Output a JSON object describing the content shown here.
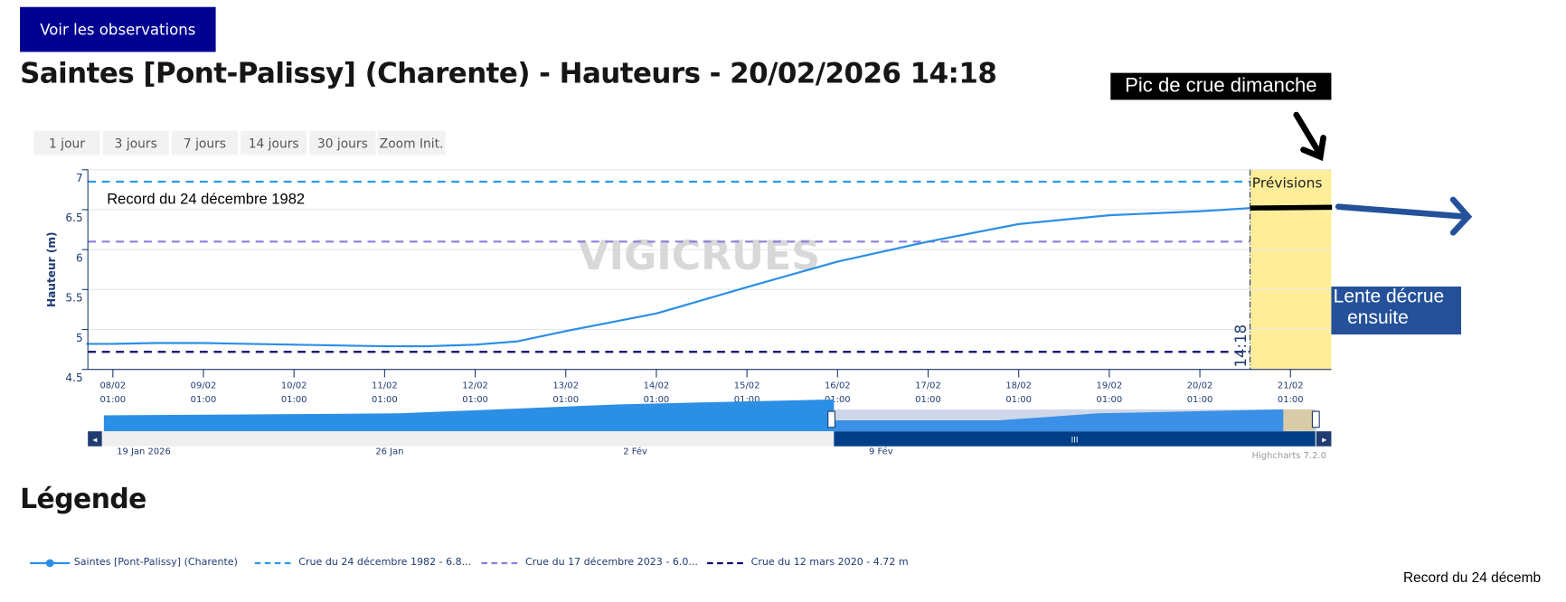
{
  "header": {
    "observations_button": "Voir les observations",
    "title": "Saintes [Pont-Palissy] (Charente) - Hauteurs - 20/02/2026 14:18"
  },
  "range_buttons": [
    "1 jour",
    "3 jours",
    "7 jours",
    "14 jours",
    "30 jours",
    "Zoom Init."
  ],
  "annotations": {
    "peak": "Pic de crue dimanche",
    "decline_line1": "Lente décrue",
    "decline_line2": "ensuite",
    "record_label": "Record du 24 décembre 1982",
    "forecast_label": "Prévisions",
    "now_label": "14:18",
    "stray_text": "Record du 24 décemb"
  },
  "watermark": "VIGICRUES",
  "credits": "Highcharts 7.2.0",
  "legend": {
    "title": "Légende",
    "items": [
      {
        "label": "Saintes [Pont-Palissy] (Charente)",
        "color": "#2b8fe6"
      },
      {
        "label": "Crue du 24 décembre 1982 - 6.8...",
        "color": "#2b9be6"
      },
      {
        "label": "Crue du 17 décembre 2023 - 6.0...",
        "color": "#8a7fe0"
      },
      {
        "label": "Crue du 12 mars 2020 - 4.72 m",
        "color": "#0b0b6e"
      }
    ]
  },
  "navigator": {
    "labels": [
      "19 Jan 2026",
      "26 Jan",
      "2 Fév",
      "9 Fév"
    ]
  },
  "chart_data": {
    "type": "line",
    "ylabel": "Hauteur (m)",
    "ylim": [
      4.5,
      7
    ],
    "yticks": [
      "4.5",
      "5",
      "5.5",
      "6",
      "6.5",
      "7"
    ],
    "xticks": [
      [
        "08/02",
        "01:00"
      ],
      [
        "09/02",
        "01:00"
      ],
      [
        "10/02",
        "01:00"
      ],
      [
        "11/02",
        "01:00"
      ],
      [
        "12/02",
        "01:00"
      ],
      [
        "13/02",
        "01:00"
      ],
      [
        "14/02",
        "01:00"
      ],
      [
        "15/02",
        "01:00"
      ],
      [
        "16/02",
        "01:00"
      ],
      [
        "17/02",
        "01:00"
      ],
      [
        "18/02",
        "01:00"
      ],
      [
        "19/02",
        "01:00"
      ],
      [
        "20/02",
        "01:00"
      ],
      [
        "21/02",
        "01:00"
      ]
    ],
    "grid": true,
    "series": [
      {
        "name": "Saintes [Pont-Palissy] (Charente)",
        "color": "#2b8fe6",
        "x": [
          "07/02 18:00",
          "08/02 01:00",
          "08/02 12:00",
          "09/02 01:00",
          "10/02 01:00",
          "11/02 01:00",
          "11/02 12:00",
          "12/02 01:00",
          "12/02 12:00",
          "13/02 01:00",
          "14/02 01:00",
          "15/02 01:00",
          "16/02 01:00",
          "17/02 01:00",
          "18/02 01:00",
          "19/02 01:00",
          "20/02 01:00",
          "20/02 14:18"
        ],
        "y": [
          4.82,
          4.82,
          4.83,
          4.83,
          4.81,
          4.79,
          4.79,
          4.81,
          4.85,
          4.98,
          5.2,
          5.53,
          5.85,
          6.1,
          6.32,
          6.43,
          6.48,
          6.52
        ]
      },
      {
        "name": "Prévisions",
        "color": "#000000",
        "x": [
          "20/02 14:18",
          "21/02 12:00"
        ],
        "y": [
          6.52,
          6.53
        ]
      }
    ],
    "thresholds": [
      {
        "name": "Crue du 24 décembre 1982",
        "value": 6.85,
        "color": "#2b9be6"
      },
      {
        "name": "Crue du 17 décembre 2023",
        "value": 6.1,
        "color": "#8a7fe0"
      },
      {
        "name": "Crue du 12 mars 2020",
        "value": 4.72,
        "color": "#0b0b6e"
      }
    ],
    "now": "20/02 14:18",
    "forecast_band_color": "#ffee99"
  }
}
